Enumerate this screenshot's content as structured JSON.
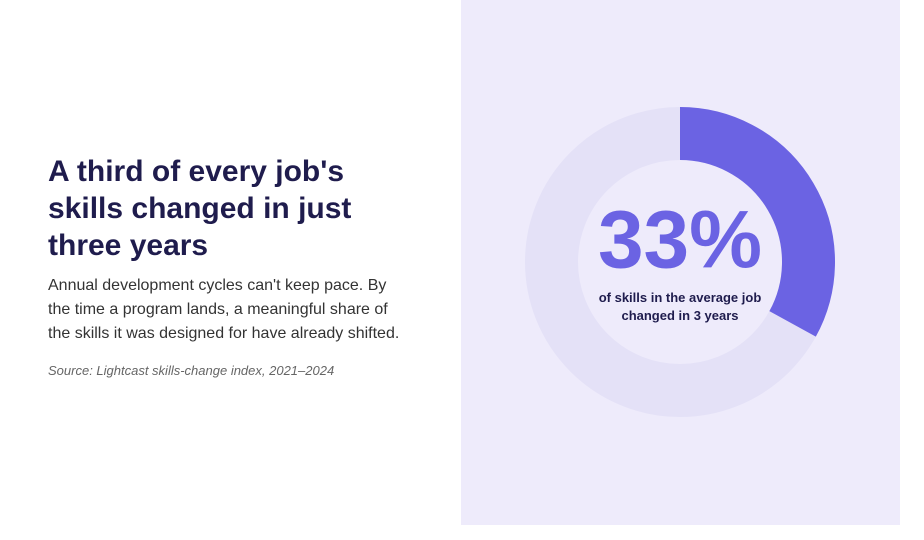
{
  "title": "A third of every job's skills changed in just three years",
  "body": "Annual development cycles can't keep pace. By the time a program lands, a meaningful share of the skills it was designed for have already shifted.",
  "source": "Source: Lightcast skills-change index, 2021–2024",
  "chart_data": {
    "type": "donut",
    "values": [
      33
    ],
    "value_labels": [
      "33%"
    ],
    "caption": "of skills in the average job changed in 3 years",
    "color": "#6b63e3",
    "track_color": "#e4e1f7"
  }
}
